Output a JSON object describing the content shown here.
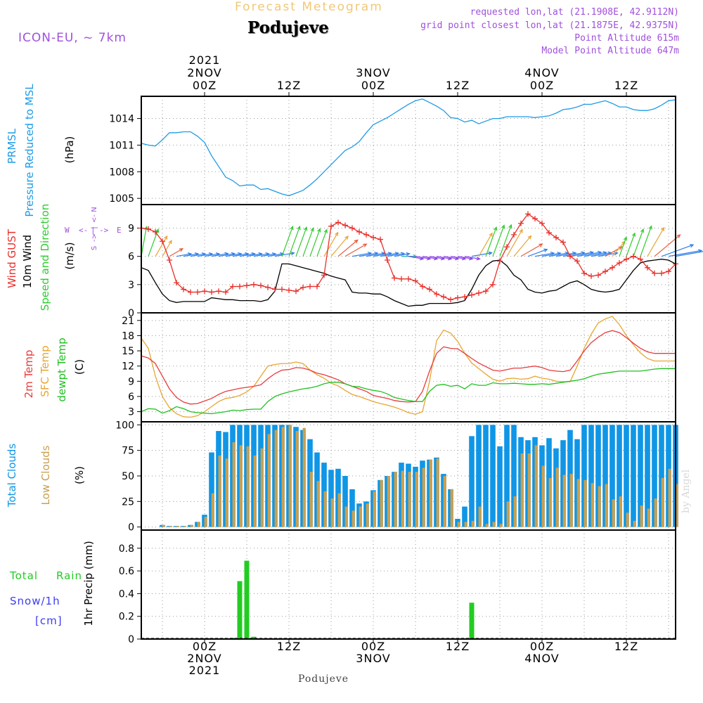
{
  "header": {
    "chart_kind": "Forecast Meteogram",
    "place": "Podujeve",
    "model": "ICON-EU, ~ 7km",
    "requested": "requested lon,lat (21.1908E, 42.9112N)",
    "grid_point": "grid point closest lon,lat (21.1875E, 42.9375N)",
    "point_altitude": "Point Altitude 615m",
    "model_altitude": "Model Point Altitude 647m",
    "watermark": "by Angel",
    "footer_place": "Podujeve"
  },
  "colors": {
    "pressure": "#1e9be6",
    "gust": "#e8302c",
    "wind": "#000000",
    "direction_green": "#2ecc2e",
    "temp": "#e83c3c",
    "sfc_temp": "#e8a532",
    "dewpt": "#20c020",
    "total_clouds": "#0f96e6",
    "low_clouds": "#c8a050",
    "rain": "#22cc22",
    "snow": "#3c3cf0",
    "label_purple": "#a050dc",
    "title_orange": "#f0c878"
  },
  "chart_data": [
    {
      "type": "line",
      "panel": "pressure",
      "label_lines": [
        "PRMSL",
        "Pressure Reduced to MSL"
      ],
      "ylabel": "(hPa)",
      "yticks": [
        1005,
        1008,
        1011,
        1014
      ],
      "ylim": [
        1004.3,
        1016.5
      ],
      "x_hours": [
        -9,
        -8,
        -7,
        -6,
        -5,
        -4,
        -3,
        -2,
        -1,
        0,
        1,
        2,
        3,
        4,
        5,
        6,
        7,
        8,
        9,
        10,
        11,
        12,
        13,
        14,
        15,
        16,
        17,
        18,
        19,
        20,
        21,
        22,
        23,
        24,
        25,
        26,
        27,
        28,
        29,
        30,
        31,
        32,
        33,
        34,
        35,
        36,
        37,
        38,
        39,
        40,
        41,
        42,
        43,
        44,
        45,
        46,
        47,
        48,
        49,
        50,
        51,
        52,
        53,
        54,
        55,
        56,
        57,
        58,
        59,
        60,
        61,
        62,
        63,
        64,
        65,
        66,
        67
      ],
      "values": [
        1011.2,
        1011.0,
        1010.9,
        1011.6,
        1012.4,
        1012.4,
        1012.5,
        1012.5,
        1012.0,
        1011.3,
        1009.8,
        1008.6,
        1007.4,
        1007.0,
        1006.4,
        1006.5,
        1006.5,
        1006.0,
        1006.1,
        1005.8,
        1005.5,
        1005.3,
        1005.6,
        1005.9,
        1006.5,
        1007.2,
        1008.0,
        1008.8,
        1009.6,
        1010.4,
        1010.8,
        1011.4,
        1012.4,
        1013.3,
        1013.7,
        1014.1,
        1014.6,
        1015.1,
        1015.6,
        1016.0,
        1016.2,
        1015.8,
        1015.4,
        1014.9,
        1014.1,
        1014.0,
        1013.6,
        1013.8,
        1013.4,
        1013.7,
        1014.0,
        1014.0,
        1014.2,
        1014.2,
        1014.2,
        1014.2,
        1014.1,
        1014.2,
        1014.3,
        1014.6,
        1015.0,
        1015.1,
        1015.3,
        1015.6,
        1015.6,
        1015.8,
        1016.0,
        1015.7,
        1015.3,
        1015.3,
        1015.0,
        1014.9,
        1014.9,
        1015.1,
        1015.5,
        1016.0,
        1016.1
      ]
    },
    {
      "type": "line",
      "panel": "wind",
      "label_lines": [
        "Wind GUST",
        "10m Wind",
        "Speed and Direction"
      ],
      "ylabel": "(m/s)",
      "compass": [
        "W",
        "<-",
        "|",
        "->",
        "E",
        "N",
        "<-",
        "|",
        "->",
        "S"
      ],
      "yticks": [
        0,
        3,
        6,
        9
      ],
      "ylim": [
        0,
        11.5
      ],
      "x_hours": [
        -9,
        -8,
        -7,
        -6,
        -5,
        -4,
        -3,
        -2,
        -1,
        0,
        1,
        2,
        3,
        4,
        5,
        6,
        7,
        8,
        9,
        10,
        11,
        12,
        13,
        14,
        15,
        16,
        17,
        18,
        19,
        20,
        21,
        22,
        23,
        24,
        25,
        26,
        27,
        28,
        29,
        30,
        31,
        32,
        33,
        34,
        35,
        36,
        37,
        38,
        39,
        40,
        41,
        42,
        43,
        44,
        45,
        46,
        47,
        48,
        49,
        50,
        51,
        52,
        53,
        54,
        55,
        56,
        57,
        58,
        59,
        60,
        61,
        62,
        63,
        64,
        65,
        66,
        67
      ],
      "gust": [
        9.0,
        8.9,
        8.6,
        7.6,
        5.6,
        3.2,
        2.5,
        2.2,
        2.2,
        2.3,
        2.2,
        2.3,
        2.2,
        2.8,
        2.8,
        2.9,
        3.0,
        2.9,
        2.7,
        2.5,
        2.5,
        2.4,
        2.3,
        2.7,
        2.8,
        2.8,
        4.0,
        9.2,
        9.6,
        9.3,
        9.0,
        8.6,
        8.3,
        8.0,
        7.8,
        5.6,
        3.7,
        3.6,
        3.6,
        3.4,
        2.8,
        2.5,
        2.0,
        1.7,
        1.4,
        1.6,
        1.7,
        1.9,
        2.1,
        2.3,
        3.0,
        5.5,
        7.0,
        8.3,
        9.5,
        10.5,
        10.0,
        9.5,
        8.5,
        8.0,
        7.5,
        6.0,
        5.5,
        4.2,
        3.9,
        4.0,
        4.4,
        4.8,
        5.3,
        5.7,
        6.0,
        5.7,
        4.8,
        4.2,
        4.2,
        4.4,
        5.2
      ],
      "wind10m": [
        4.8,
        4.5,
        3.2,
        2.0,
        1.3,
        1.1,
        1.2,
        1.2,
        1.2,
        1.2,
        1.6,
        1.5,
        1.4,
        1.4,
        1.3,
        1.3,
        1.3,
        1.2,
        1.4,
        2.3,
        5.2,
        5.2,
        5.0,
        4.8,
        4.6,
        4.4,
        4.2,
        3.9,
        3.7,
        3.5,
        2.2,
        2.1,
        2.1,
        2.0,
        2.0,
        1.7,
        1.3,
        1.0,
        0.7,
        0.8,
        0.8,
        1.0,
        1.0,
        1.0,
        1.0,
        1.1,
        1.3,
        2.5,
        4.0,
        5.0,
        5.5,
        5.6,
        5.0,
        4.0,
        3.5,
        2.5,
        2.2,
        2.1,
        2.3,
        2.4,
        2.8,
        3.2,
        3.4,
        3.0,
        2.5,
        2.3,
        2.2,
        2.3,
        2.5,
        3.5,
        4.5,
        5.3,
        5.5,
        5.6,
        5.7,
        5.6,
        5.2
      ],
      "arrow_directions_deg": [
        10,
        20,
        30,
        30,
        60,
        80,
        80,
        80,
        80,
        80,
        80,
        80,
        80,
        80,
        80,
        80,
        80,
        80,
        80,
        80,
        20,
        20,
        20,
        20,
        20,
        20,
        30,
        40,
        50,
        60,
        80,
        80,
        80,
        80,
        80,
        80,
        80,
        90,
        100,
        100,
        100,
        100,
        100,
        100,
        100,
        100,
        100,
        80,
        30,
        20,
        20,
        20,
        30,
        40,
        60,
        70,
        80,
        80,
        80,
        80,
        80,
        80,
        80,
        80,
        80,
        80,
        60,
        40,
        20,
        20,
        20,
        20,
        30,
        50,
        70,
        80,
        80
      ]
    },
    {
      "type": "line",
      "panel": "temperature",
      "label_lines": [
        "2m Temp",
        "SFC Temp",
        "dewpt Temp"
      ],
      "ylabel": "(C)",
      "yticks": [
        3,
        6,
        9,
        12,
        15,
        18,
        21
      ],
      "ylim": [
        1.0,
        22.5
      ],
      "x_hours": [
        -9,
        -8,
        -7,
        -6,
        -5,
        -4,
        -3,
        -2,
        -1,
        0,
        1,
        2,
        3,
        4,
        5,
        6,
        7,
        8,
        9,
        10,
        11,
        12,
        13,
        14,
        15,
        16,
        17,
        18,
        19,
        20,
        21,
        22,
        23,
        24,
        25,
        26,
        27,
        28,
        29,
        30,
        31,
        32,
        33,
        34,
        35,
        36,
        37,
        38,
        39,
        40,
        41,
        42,
        43,
        44,
        45,
        46,
        47,
        48,
        49,
        50,
        51,
        52,
        53,
        54,
        55,
        56,
        57,
        58,
        59,
        60,
        61,
        62,
        63,
        64,
        65,
        66,
        67
      ],
      "temp2m": [
        14.0,
        13.6,
        12.5,
        10.0,
        7.5,
        5.8,
        4.9,
        4.5,
        4.6,
        5.1,
        5.6,
        6.4,
        7.0,
        7.3,
        7.6,
        7.8,
        8.0,
        8.3,
        9.5,
        10.5,
        11.2,
        11.3,
        11.7,
        11.6,
        11.2,
        10.6,
        10.3,
        9.8,
        9.3,
        8.5,
        8.0,
        7.5,
        7.0,
        6.2,
        5.9,
        5.6,
        5.2,
        5.0,
        4.9,
        5.0,
        7.0,
        11.0,
        14.5,
        15.8,
        15.5,
        15.4,
        14.5,
        13.5,
        12.6,
        11.9,
        11.2,
        11.0,
        11.3,
        11.6,
        11.6,
        11.8,
        12.0,
        11.7,
        11.2,
        11.0,
        10.9,
        11.2,
        13.0,
        15.0,
        16.6,
        17.7,
        18.6,
        19.0,
        18.6,
        17.6,
        16.5,
        15.5,
        14.8,
        14.5,
        14.5,
        14.5,
        14.5
      ],
      "sfc_temp": [
        17.5,
        15.5,
        10.0,
        6.0,
        3.8,
        2.6,
        2.0,
        1.9,
        2.2,
        3.0,
        4.0,
        5.0,
        5.6,
        5.8,
        6.2,
        6.9,
        8.0,
        10.0,
        12.0,
        12.3,
        12.5,
        12.5,
        12.8,
        12.5,
        11.2,
        10.3,
        9.6,
        8.6,
        8.1,
        7.2,
        6.4,
        6.0,
        5.5,
        5.0,
        4.6,
        4.3,
        3.9,
        3.4,
        2.8,
        2.5,
        3.0,
        9.0,
        17.0,
        19.1,
        18.5,
        16.9,
        14.5,
        12.6,
        11.5,
        10.4,
        9.4,
        9.0,
        9.5,
        9.6,
        9.4,
        9.5,
        10.0,
        9.6,
        9.4,
        9.0,
        8.9,
        8.9,
        12.0,
        15.5,
        18.3,
        20.5,
        21.3,
        21.8,
        20.2,
        18.0,
        16.2,
        14.6,
        13.5,
        13.0,
        13.0,
        13.0,
        13.0
      ],
      "dewpt": [
        3.0,
        3.6,
        3.5,
        2.7,
        3.2,
        4.0,
        3.6,
        3.0,
        2.8,
        2.7,
        2.6,
        2.8,
        3.0,
        3.3,
        3.2,
        3.4,
        3.5,
        3.5,
        5.0,
        6.0,
        6.5,
        6.9,
        7.2,
        7.5,
        7.7,
        8.0,
        8.5,
        8.8,
        8.8,
        8.5,
        8.0,
        7.9,
        7.5,
        7.2,
        7.0,
        6.5,
        5.8,
        5.5,
        5.2,
        5.0,
        5.0,
        7.0,
        8.2,
        8.4,
        8.0,
        8.2,
        7.5,
        8.5,
        8.2,
        8.2,
        8.7,
        8.5,
        8.5,
        8.6,
        8.5,
        8.4,
        8.4,
        8.5,
        8.4,
        8.6,
        8.8,
        9.0,
        9.2,
        9.5,
        10.0,
        10.4,
        10.6,
        10.8,
        11.0,
        11.0,
        11.0,
        11.0,
        11.2,
        11.4,
        11.5,
        11.5,
        11.5
      ]
    },
    {
      "type": "bar",
      "panel": "clouds",
      "label_lines": [
        "Total Clouds",
        "Low Clouds"
      ],
      "ylabel": "(%)",
      "yticks": [
        0,
        25,
        50,
        75,
        100
      ],
      "ylim": [
        -3,
        103
      ],
      "x_hours": [
        -9,
        -8,
        -7,
        -6,
        -5,
        -4,
        -3,
        -2,
        -1,
        0,
        1,
        2,
        3,
        4,
        5,
        6,
        7,
        8,
        9,
        10,
        11,
        12,
        13,
        14,
        15,
        16,
        17,
        18,
        19,
        20,
        21,
        22,
        23,
        24,
        25,
        26,
        27,
        28,
        29,
        30,
        31,
        32,
        33,
        34,
        35,
        36,
        37,
        38,
        39,
        40,
        41,
        42,
        43,
        44,
        45,
        46,
        47,
        48,
        49,
        50,
        51,
        52,
        53,
        54,
        55,
        56,
        57,
        58,
        59,
        60,
        61,
        62,
        63,
        64,
        65,
        66,
        67
      ],
      "total": [
        0,
        0,
        0,
        2,
        1,
        1,
        1,
        2,
        5,
        12,
        73,
        94,
        93,
        100,
        100,
        100,
        100,
        100,
        100,
        100,
        100,
        100,
        98,
        95,
        86,
        73,
        63,
        56,
        57,
        50,
        37,
        23,
        25,
        36,
        46,
        50,
        54,
        63,
        62,
        59,
        65,
        66,
        68,
        52,
        37,
        8,
        20,
        89,
        100,
        100,
        100,
        79,
        100,
        100,
        88,
        85,
        88,
        80,
        87,
        77,
        85,
        95,
        86,
        100,
        100,
        100,
        100,
        100,
        100,
        100,
        100,
        100,
        100,
        100,
        100,
        100,
        100
      ],
      "low": [
        0,
        0,
        0,
        2,
        1,
        1,
        1,
        2,
        5,
        10,
        33,
        70,
        67,
        83,
        80,
        79,
        70,
        77,
        91,
        95,
        98,
        100,
        94,
        97,
        54,
        45,
        35,
        28,
        33,
        20,
        16,
        20,
        23,
        35,
        46,
        50,
        54,
        55,
        54,
        54,
        58,
        66,
        67,
        50,
        37,
        5,
        5,
        6,
        20,
        3,
        5,
        3,
        25,
        30,
        72,
        72,
        80,
        60,
        48,
        58,
        51,
        52,
        47,
        46,
        43,
        40,
        42,
        27,
        30,
        14,
        6,
        21,
        18,
        28,
        48,
        57,
        42
      ]
    },
    {
      "type": "bar",
      "panel": "precip",
      "label_lines": [
        "Total",
        "Rain",
        "Snow/1h",
        "[cm]"
      ],
      "ylabel": "1hr Precip (mm)",
      "yticks": [
        0,
        0.2,
        0.4,
        0.6,
        0.8
      ],
      "ylim": [
        0,
        0.96
      ],
      "x_hours": [
        4,
        5,
        6,
        7,
        38
      ],
      "values": [
        0.01,
        0.51,
        0.69,
        0.02,
        0.32
      ]
    }
  ],
  "time_axis": {
    "top": [
      {
        "hour": 0,
        "lines": [
          "2021",
          "2NOV",
          "00Z"
        ]
      },
      {
        "hour": 12,
        "lines": [
          "12Z"
        ]
      },
      {
        "hour": 24,
        "lines": [
          "3NOV",
          "00Z"
        ]
      },
      {
        "hour": 36,
        "lines": [
          "12Z"
        ]
      },
      {
        "hour": 48,
        "lines": [
          "4NOV",
          "00Z"
        ]
      },
      {
        "hour": 60,
        "lines": [
          "12Z"
        ]
      }
    ],
    "bottom": [
      {
        "hour": 0,
        "lines": [
          "00Z",
          "2NOV",
          "2021"
        ]
      },
      {
        "hour": 12,
        "lines": [
          "12Z"
        ]
      },
      {
        "hour": 24,
        "lines": [
          "00Z",
          "3NOV"
        ]
      },
      {
        "hour": 36,
        "lines": [
          "12Z"
        ]
      },
      {
        "hour": 48,
        "lines": [
          "00Z",
          "4NOV"
        ]
      },
      {
        "hour": 60,
        "lines": [
          "12Z"
        ]
      }
    ]
  }
}
